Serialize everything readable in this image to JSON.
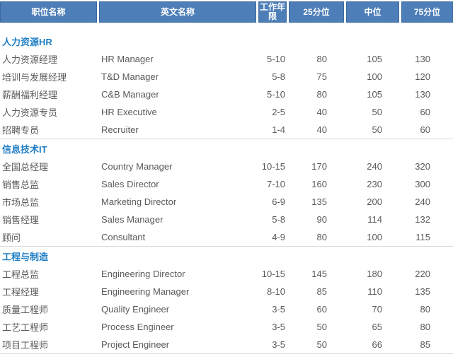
{
  "colors": {
    "header_bg": "#4d7eb8",
    "header_border": "#3b689e",
    "header_text": "#ffffff",
    "section_title_text": "#1f7ec5",
    "body_text": "#595959",
    "divider": "#d9d9d9"
  },
  "table": {
    "columns": [
      {
        "label": "职位名称"
      },
      {
        "label": "英文名称"
      },
      {
        "label": "工作年限"
      },
      {
        "label": "25分位"
      },
      {
        "label": "中位"
      },
      {
        "label": "75分位"
      }
    ],
    "sections": [
      {
        "title": "人力资源HR",
        "rows": [
          {
            "cn": "人力资源经理",
            "en": "HR Manager",
            "years": "5-10",
            "p25": "80",
            "p50": "105",
            "p75": "130"
          },
          {
            "cn": "培训与发展经理",
            "en": "T&D Manager",
            "years": "5-8",
            "p25": "75",
            "p50": "100",
            "p75": "120"
          },
          {
            "cn": "薪酬福利经理",
            "en": "C&B Manager",
            "years": "5-10",
            "p25": "80",
            "p50": "105",
            "p75": "130"
          },
          {
            "cn": "人力资源专员",
            "en": "HR Executive",
            "years": "2-5",
            "p25": "40",
            "p50": "50",
            "p75": "60"
          },
          {
            "cn": "招聘专员",
            "en": "Recruiter",
            "years": "1-4",
            "p25": "40",
            "p50": "50",
            "p75": "60"
          }
        ]
      },
      {
        "title": "信息技术IT",
        "rows": [
          {
            "cn": "全国总经理",
            "en": "Country Manager",
            "years": "10-15",
            "p25": "170",
            "p50": "240",
            "p75": "320"
          },
          {
            "cn": "销售总监",
            "en": "Sales Director",
            "years": "7-10",
            "p25": "160",
            "p50": "230",
            "p75": "300"
          },
          {
            "cn": "市场总监",
            "en": "Marketing Director",
            "years": "6-9",
            "p25": "135",
            "p50": "200",
            "p75": "240"
          },
          {
            "cn": "销售经理",
            "en": "Sales Manager",
            "years": "5-8",
            "p25": "90",
            "p50": "114",
            "p75": "132"
          },
          {
            "cn": "顾问",
            "en": "Consultant",
            "years": "4-9",
            "p25": "80",
            "p50": "100",
            "p75": "115"
          }
        ]
      },
      {
        "title": "工程与制造",
        "rows": [
          {
            "cn": "工程总监",
            "en": "Engineering Director",
            "years": "10-15",
            "p25": "145",
            "p50": "180",
            "p75": "220"
          },
          {
            "cn": "工程经理",
            "en": "Engineering Manager",
            "years": "8-10",
            "p25": "85",
            "p50": "110",
            "p75": "135"
          },
          {
            "cn": "质量工程师",
            "en": "Quality Engineer",
            "years": "3-5",
            "p25": "60",
            "p50": "70",
            "p75": "80"
          },
          {
            "cn": "工艺工程师",
            "en": "Process Engineer",
            "years": "3-5",
            "p25": "50",
            "p50": "65",
            "p75": "80"
          },
          {
            "cn": "项目工程师",
            "en": "Project Engineer",
            "years": "3-5",
            "p25": "50",
            "p50": "66",
            "p75": "85"
          }
        ]
      }
    ]
  }
}
